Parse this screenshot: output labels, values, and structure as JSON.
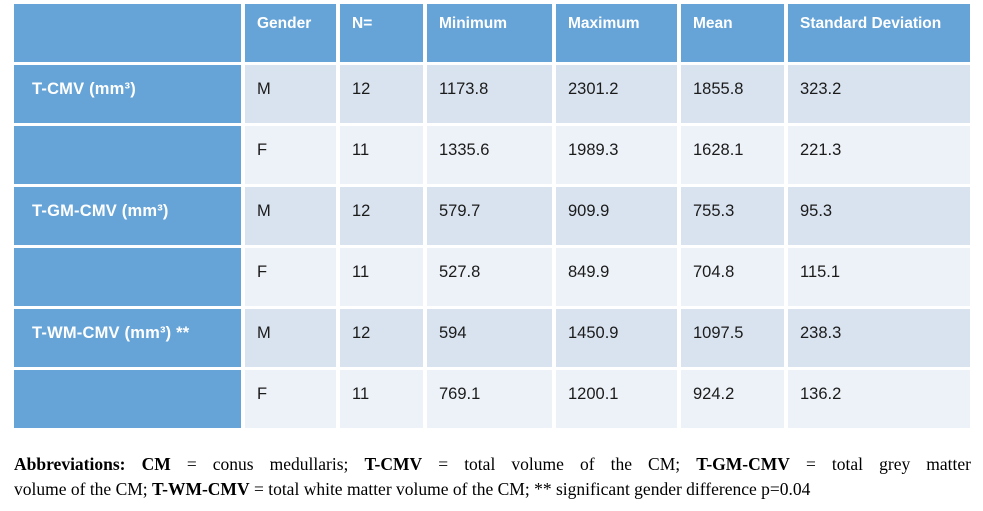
{
  "table": {
    "columns": [
      "",
      "Gender",
      "N=",
      "Minimum",
      "Maximum",
      "Mean",
      "Standard Deviation"
    ],
    "rows": [
      {
        "label": "T-CMV (mm³)",
        "gender": "M",
        "n": "12",
        "min": "1173.8",
        "max": "2301.2",
        "mean": "1855.8",
        "sd": "323.2"
      },
      {
        "label": "",
        "gender": "F",
        "n": "11",
        "min": "1335.6",
        "max": "1989.3",
        "mean": "1628.1",
        "sd": "221.3"
      },
      {
        "label": "T-GM-CMV (mm³)",
        "gender": "M",
        "n": "12",
        "min": "579.7",
        "max": "909.9",
        "mean": "755.3",
        "sd": "95.3"
      },
      {
        "label": "",
        "gender": "F",
        "n": "11",
        "min": "527.8",
        "max": "849.9",
        "mean": "704.8",
        "sd": "115.1"
      },
      {
        "label": "T-WM-CMV (mm³) **",
        "gender": "M",
        "n": "12",
        "min": "594",
        "max": "1450.9",
        "mean": "1097.5",
        "sd": "238.3"
      },
      {
        "label": "",
        "gender": "F",
        "n": "11",
        "min": "769.1",
        "max": "1200.1",
        "mean": "924.2",
        "sd": "136.2"
      }
    ]
  },
  "colors": {
    "header_blue": "#66a4d8",
    "band_m": "#d9e3ef",
    "band_f": "#edf2f8",
    "text_dark": "#1b1b1b"
  },
  "footnote": {
    "lines": [
      {
        "segments": [
          {
            "text": "Abbreviations:",
            "bold": true
          },
          {
            "text": " ",
            "bold": false
          },
          {
            "text": "CM",
            "bold": true
          },
          {
            "text": " = conus medullaris; ",
            "bold": false
          },
          {
            "text": "T-CMV",
            "bold": true
          },
          {
            "text": " = total volume of the CM; ",
            "bold": false
          },
          {
            "text": "T-GM-CMV",
            "bold": true
          },
          {
            "text": " = total grey matter",
            "bold": false
          }
        ]
      },
      {
        "segments": [
          {
            "text": "volume of the CM; ",
            "bold": false
          },
          {
            "text": "T-WM-CMV",
            "bold": true
          },
          {
            "text": " = total white matter volume of the CM; ** significant gender difference p=0.04",
            "bold": false
          }
        ]
      }
    ]
  }
}
